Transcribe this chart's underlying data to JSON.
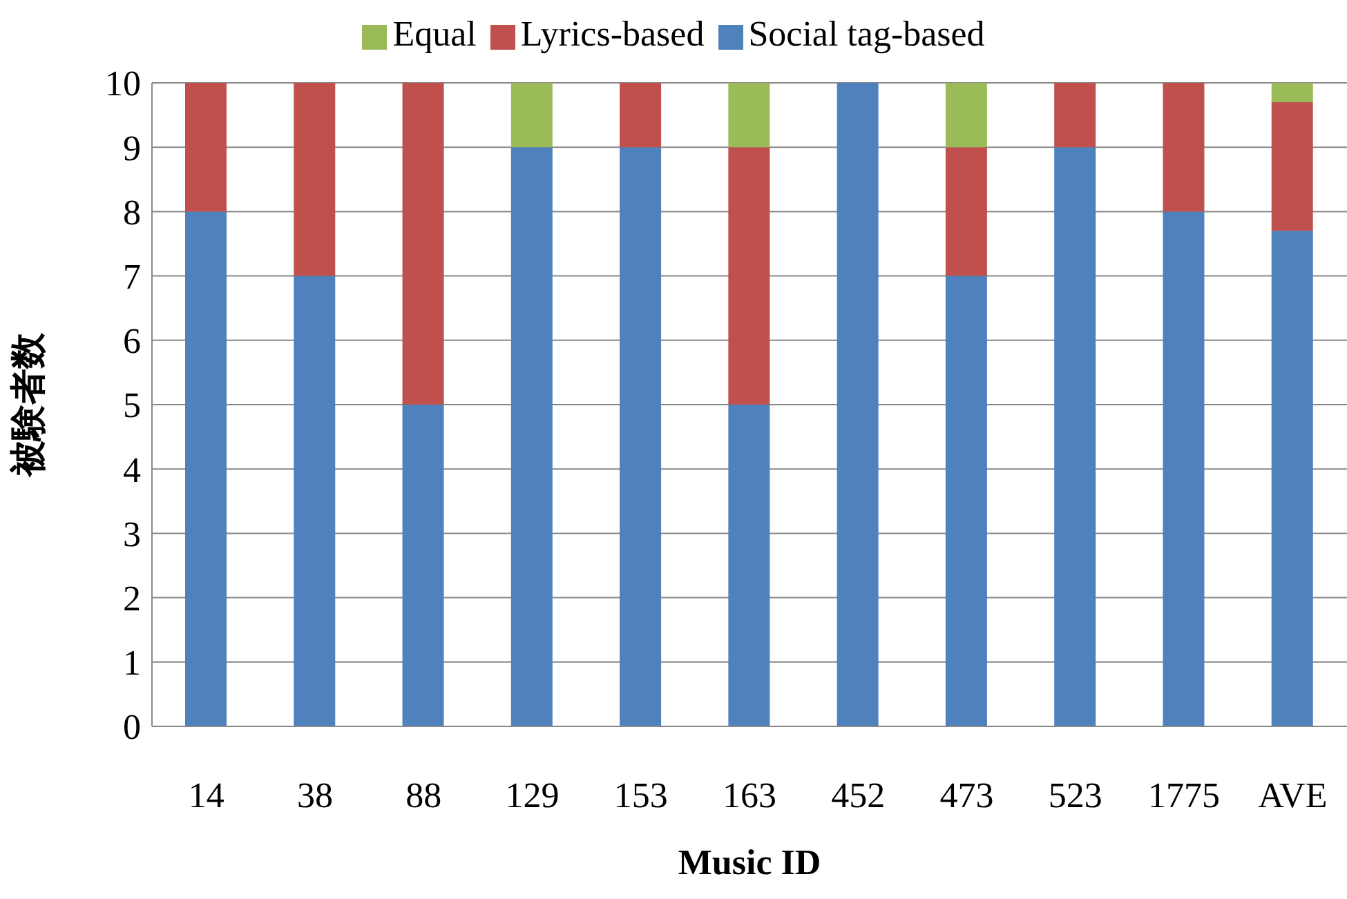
{
  "chart_data": {
    "type": "bar",
    "stacked": true,
    "xlabel": "Music ID",
    "ylabel": "被験者数",
    "categories": [
      "14",
      "38",
      "88",
      "129",
      "153",
      "163",
      "452",
      "473",
      "523",
      "1775",
      "AVE"
    ],
    "series": [
      {
        "name": "Social tag-based",
        "color": "#4f81bd",
        "values": [
          8,
          7,
          5,
          9,
          9,
          5,
          10,
          7,
          9,
          8,
          7.7
        ]
      },
      {
        "name": "Lyrics-based",
        "color": "#c0504d",
        "values": [
          2,
          3,
          5,
          0,
          1,
          4,
          0,
          2,
          1,
          2,
          2.0
        ]
      },
      {
        "name": "Equal",
        "color": "#9bbb59",
        "values": [
          0,
          0,
          0,
          1,
          0,
          1,
          0,
          1,
          0,
          0,
          0.3
        ]
      }
    ],
    "ylim": [
      0,
      10
    ],
    "yticks": [
      0,
      1,
      2,
      3,
      4,
      5,
      6,
      7,
      8,
      9,
      10
    ],
    "grid": "y",
    "legend": "top"
  }
}
